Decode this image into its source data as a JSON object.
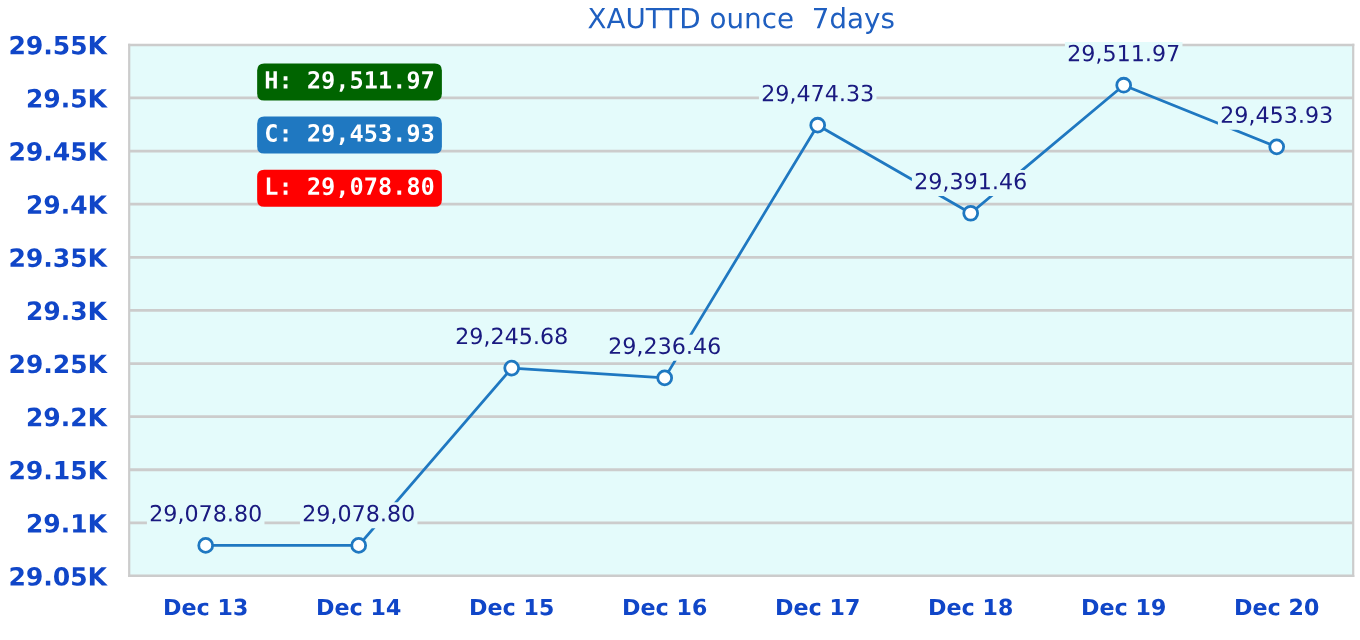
{
  "chart_data": {
    "type": "line",
    "title": "XAUTTD ounce  7days",
    "categories": [
      "Dec 13",
      "Dec 14",
      "Dec 15",
      "Dec 16",
      "Dec 17",
      "Dec 18",
      "Dec 19",
      "Dec 20"
    ],
    "series": [
      {
        "color": "#1f78c1",
        "values": [
          29078.8,
          29078.8,
          29245.68,
          29236.46,
          29474.33,
          29391.46,
          29511.97,
          29453.93
        ],
        "value_labels": [
          "29,078.80",
          "29,078.80",
          "29,245.68",
          "29,236.46",
          "29,474.33",
          "29,391.46",
          "29,511.97",
          "29,453.93"
        ]
      }
    ],
    "ylim": [
      29050,
      29550
    ],
    "yticks": [
      {
        "value": 29050,
        "label": "29.05K"
      },
      {
        "value": 29100,
        "label": "29.1K"
      },
      {
        "value": 29150,
        "label": "29.15K"
      },
      {
        "value": 29200,
        "label": "29.2K"
      },
      {
        "value": 29250,
        "label": "29.25K"
      },
      {
        "value": 29300,
        "label": "29.3K"
      },
      {
        "value": 29350,
        "label": "29.35K"
      },
      {
        "value": 29400,
        "label": "29.4K"
      },
      {
        "value": 29450,
        "label": "29.45K"
      },
      {
        "value": 29500,
        "label": "29.5K"
      },
      {
        "value": 29550,
        "label": "29.55K"
      }
    ],
    "annotations": [
      "H: 29,511.97",
      "C: 29,453.93",
      "L: 29,078.80"
    ],
    "grid": "y",
    "marker": "circle",
    "line_style": "solid",
    "legend": false
  }
}
